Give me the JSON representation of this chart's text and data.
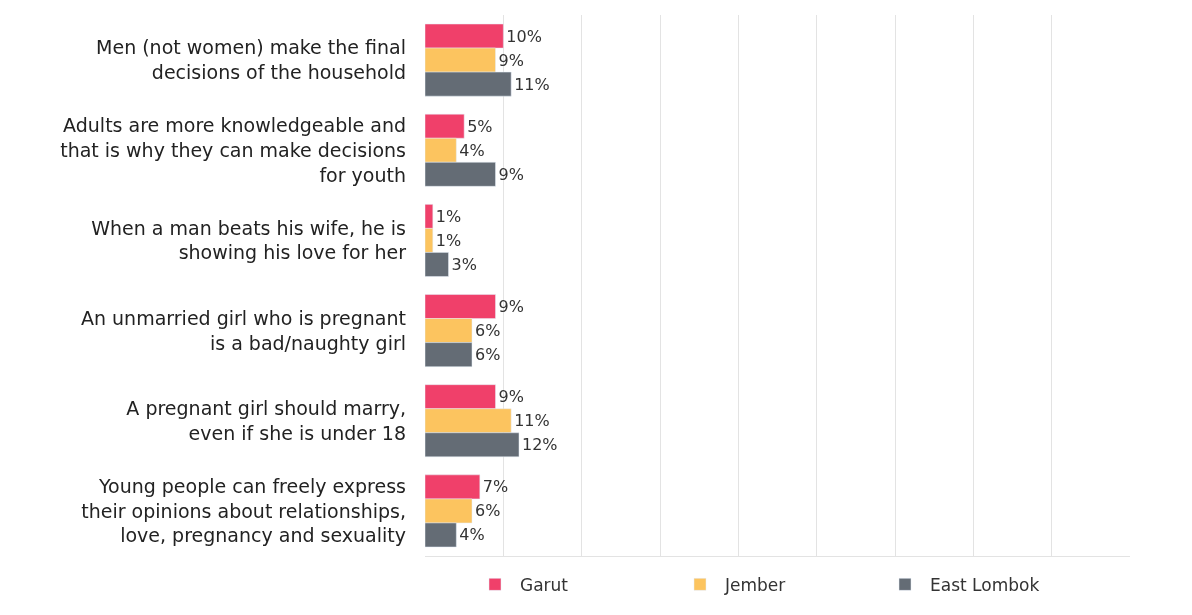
{
  "chart_data": {
    "type": "bar",
    "orientation": "horizontal",
    "categories": [
      "Men (not women) make the final\ndecisions of the household",
      "Adults are more knowledgeable and\nthat is why they can make decisions\nfor youth",
      "When a man beats his wife, he is\nshowing his love for her",
      "An unmarried girl who is pregnant\nis a bad/naughty girl",
      "A pregnant girl should marry,\neven if she is under 18",
      "Young people can freely express\ntheir opinions about relationships,\nlove, pregnancy and sexuality"
    ],
    "series": [
      {
        "name": "Garut",
        "color": "#f0406a",
        "values": [
          10,
          5,
          1,
          9,
          9,
          7
        ],
        "value_labels": [
          "10%",
          "5%",
          "1%",
          "9%",
          "9%",
          "7%"
        ]
      },
      {
        "name": "Jember",
        "color": "#fcc45f",
        "values": [
          9,
          4,
          1,
          6,
          11,
          6
        ],
        "value_labels": [
          "9%",
          "4%",
          "1%",
          "6%",
          "11%",
          "6%"
        ]
      },
      {
        "name": "East Lombok",
        "color": "#646c75",
        "values": [
          11,
          9,
          3,
          6,
          12,
          4
        ],
        "value_labels": [
          "11%",
          "9%",
          "3%",
          "6%",
          "12%",
          "4%"
        ]
      }
    ],
    "xlim": [
      0,
      90
    ],
    "grid": "x",
    "legend": "bottom",
    "tick_labels": "y"
  }
}
